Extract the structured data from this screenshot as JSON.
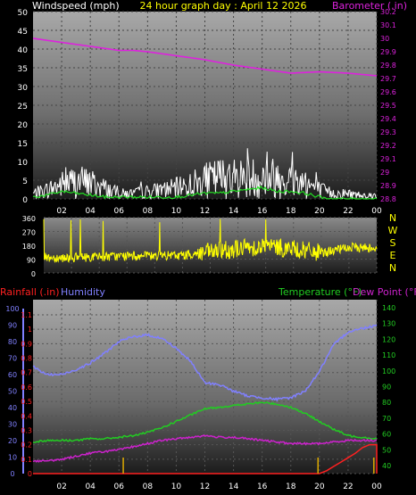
{
  "header": {
    "left_label": "Windspeed (mph)",
    "center_label": "24 hour graph day : April 12 2026",
    "right_label": "Barometer (.in)"
  },
  "colors": {
    "background": "#000000",
    "windspeed": "#ffffff",
    "wind_avg": "#22dd22",
    "barometer": "#dd22dd",
    "title": "#ffff00",
    "direction": "#ffff00",
    "rainfall": "#ff2020",
    "humidity": "#8080ff",
    "temperature": "#22cc22",
    "dewpoint": "#cc22cc",
    "rain_tick": "#ddaa00"
  },
  "chart_data": [
    {
      "type": "line",
      "name": "wind-barometer",
      "x_ticks": [
        "02",
        "04",
        "06",
        "08",
        "10",
        "12",
        "14",
        "16",
        "18",
        "20",
        "22",
        "00"
      ],
      "left_axis": {
        "label": "Windspeed (mph)",
        "ticks": [
          "0",
          "5",
          "10",
          "15",
          "20",
          "25",
          "30",
          "35",
          "40",
          "45",
          "50"
        ],
        "ylim": [
          0,
          50
        ]
      },
      "right_axis": {
        "label": "Barometer (.in)",
        "ticks": [
          "28.8",
          "28.9",
          "29",
          "29.1",
          "29.2",
          "29.3",
          "29.4",
          "29.5",
          "29.6",
          "29.7",
          "29.8",
          "29.9",
          "30",
          "30.1",
          "30.2"
        ],
        "ylim": [
          28.8,
          30.2
        ]
      },
      "series": [
        {
          "axis": "right",
          "color": "#dd22dd",
          "x": [
            0,
            2,
            4,
            6,
            7,
            8,
            10,
            12,
            14,
            16,
            18,
            20,
            22,
            24
          ],
          "y": [
            30.0,
            29.97,
            29.94,
            29.91,
            29.91,
            29.9,
            29.87,
            29.84,
            29.8,
            29.77,
            29.74,
            29.75,
            29.74,
            29.72
          ]
        },
        {
          "axis": "left",
          "color": "#22dd22",
          "x": [
            0,
            1,
            2,
            3,
            4,
            5,
            6,
            7,
            8,
            9,
            10,
            11,
            12,
            13,
            14,
            15,
            16,
            17,
            18,
            19,
            20,
            21,
            22,
            23,
            24
          ],
          "y": [
            0.5,
            1,
            2,
            1.5,
            1,
            0.5,
            0.5,
            0.5,
            0.5,
            0.5,
            0.5,
            1,
            1.5,
            1.5,
            2,
            2.5,
            3,
            2,
            2,
            1.5,
            0.5,
            0,
            0,
            0,
            0
          ]
        }
      ],
      "gusts_profile": {
        "x": [
          0,
          1,
          2,
          3,
          4,
          5,
          6,
          7,
          8,
          9,
          10,
          11,
          12,
          13,
          14,
          15,
          16,
          17,
          18,
          19,
          20,
          21,
          22,
          23,
          24
        ],
        "y": [
          3,
          5,
          8,
          10,
          9,
          6,
          3,
          3,
          4,
          5,
          6,
          8,
          10,
          12,
          12,
          12,
          12,
          12,
          11,
          9,
          5,
          3,
          3,
          2,
          2
        ]
      }
    },
    {
      "type": "line",
      "name": "wind-direction",
      "left_axis": {
        "ticks": [
          "0",
          "90",
          "180",
          "270",
          "360"
        ],
        "ylim": [
          0,
          360
        ]
      },
      "right_axis": {
        "ticks": [
          "N",
          "W",
          "S",
          "E",
          "N"
        ]
      },
      "direction_profile": {
        "x": [
          0,
          2,
          4,
          6,
          8,
          10,
          12,
          14,
          16,
          18,
          20,
          22,
          24
        ],
        "y": [
          100,
          100,
          105,
          110,
          110,
          115,
          135,
          160,
          175,
          155,
          130,
          165,
          165
        ]
      }
    },
    {
      "type": "line",
      "name": "humidity-temperature",
      "header": {
        "rainfall_label": "Rainfall (.in)",
        "humidity_label": "Humidity",
        "temperature_label": "Temperature (°F)",
        "dewpoint_label": "Dew Point (°F)"
      },
      "x_ticks": [
        "02",
        "04",
        "06",
        "08",
        "10",
        "12",
        "14",
        "16",
        "18",
        "20",
        "22",
        "00"
      ],
      "humidity_axis": {
        "ticks": [
          "0",
          "10",
          "20",
          "30",
          "40",
          "50",
          "60",
          "70",
          "80",
          "90",
          "100"
        ],
        "ylim": [
          0,
          100
        ]
      },
      "rainfall_axis": {
        "ticks": [
          "0",
          "0.1",
          "0.2",
          "0.3",
          "0.4",
          "0.5",
          "0.6",
          "0.7",
          "0.8",
          "0.9",
          "1",
          "1.1"
        ],
        "ylim": [
          0,
          1.1
        ]
      },
      "temperature_axis": {
        "ticks": [
          "40",
          "50",
          "60",
          "70",
          "80",
          "90",
          "100",
          "110",
          "120",
          "130",
          "140"
        ],
        "ylim": [
          35,
          145
        ]
      },
      "series": [
        {
          "name": "Humidity",
          "axis": "humidity",
          "color": "#8080ff",
          "x": [
            0,
            0.5,
            1,
            2,
            3,
            4,
            5,
            6,
            7,
            8,
            9,
            10,
            11,
            12,
            13,
            14,
            15,
            16,
            17,
            18,
            19,
            20,
            21,
            22,
            23,
            24
          ],
          "y": [
            65,
            62,
            60,
            60,
            63,
            67,
            73,
            80,
            83,
            84,
            82,
            76,
            68,
            55,
            54,
            50,
            47,
            46,
            45,
            46,
            50,
            62,
            78,
            86,
            88,
            90
          ]
        },
        {
          "name": "Temperature (°F)",
          "axis": "temperature",
          "color": "#22cc22",
          "x": [
            0,
            1,
            2,
            3,
            4,
            5,
            6,
            7,
            8,
            9,
            10,
            11,
            12,
            13,
            14,
            15,
            16,
            17,
            18,
            19,
            20,
            21,
            22,
            23,
            24
          ],
          "y": [
            55,
            56,
            56,
            56,
            57,
            57,
            58,
            59,
            61,
            64,
            68,
            72,
            76,
            77,
            78,
            79,
            80,
            79,
            77,
            73,
            68,
            63,
            59,
            58,
            57
          ]
        },
        {
          "name": "Dew Point (°F)",
          "axis": "temperature",
          "color": "#cc22cc",
          "x": [
            0,
            1,
            2,
            3,
            4,
            5,
            6,
            7,
            8,
            9,
            10,
            11,
            12,
            13,
            14,
            15,
            16,
            17,
            18,
            19,
            20,
            21,
            22,
            23,
            24
          ],
          "y": [
            43,
            43,
            44,
            46,
            48,
            49,
            50,
            52,
            54,
            56,
            57,
            58,
            59,
            58,
            58,
            57,
            56,
            55,
            54,
            54,
            54,
            55,
            56,
            56,
            56
          ]
        },
        {
          "name": "Rainfall (.in)",
          "axis": "rainfall",
          "color": "#ff2020",
          "x": [
            0,
            19.5,
            20,
            20.5,
            21,
            21.5,
            22,
            22.5,
            23,
            23.5,
            24,
            24
          ],
          "y": [
            0,
            0,
            0,
            0.02,
            0.05,
            0.08,
            0.11,
            0.14,
            0.18,
            0.2,
            0.2,
            0
          ]
        }
      ],
      "rain_events_x": [
        6.3,
        19.9,
        23.8
      ]
    }
  ]
}
